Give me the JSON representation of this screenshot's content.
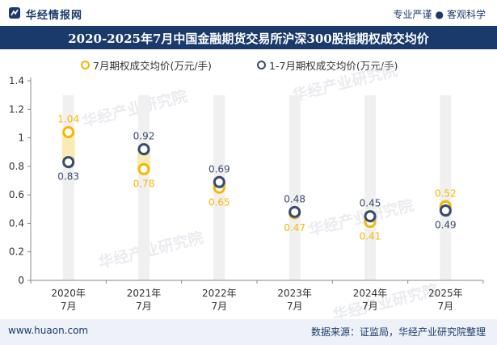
{
  "header": {
    "logo_text": "华经情报网",
    "slogan_left": "专业严谨",
    "slogan_right": "客观科学"
  },
  "title": "2020-2025年7月中国金融期货交易所沪深300股指期权成交均价",
  "watermark": "华经产业研究院",
  "watermark_url": "www.huaon.com",
  "footer": {
    "website": "www.huaon.com",
    "source": "数据来源：证监局，华经产业研究院整理"
  },
  "colors": {
    "series1": "#f5b800",
    "series2": "#3a4a6e",
    "title_bg": "#1a3a6b",
    "column_band": "#f0f0f0",
    "highlight_band": "#fbe9a8"
  },
  "chart_data": {
    "type": "line",
    "categories": [
      "2020年\n7月",
      "2021年\n7月",
      "2022年\n7月",
      "2023年\n7月",
      "2024年\n7月",
      "2025年\n7月"
    ],
    "series": [
      {
        "name": "7月期权成交均价(万元/手)",
        "values": [
          1.04,
          0.78,
          0.65,
          0.47,
          0.41,
          0.52
        ],
        "labels": [
          "1.04",
          "0.78",
          "0.65",
          "0.47",
          "0.41",
          "0.52"
        ]
      },
      {
        "name": "1-7月期权成交均价(万元/手)",
        "values": [
          0.83,
          0.92,
          0.69,
          0.48,
          0.45,
          0.49
        ],
        "labels": [
          "0.83",
          "0.92",
          "0.69",
          "0.48",
          "0.45",
          "0.49"
        ]
      }
    ],
    "y_ticks": [
      "0",
      "0.2",
      "0.4",
      "0.6",
      "0.8",
      "1",
      "1.2",
      "1.4"
    ],
    "ylim": [
      0,
      1.4
    ],
    "markers_only": true,
    "grid": false,
    "legend_position": "top"
  }
}
